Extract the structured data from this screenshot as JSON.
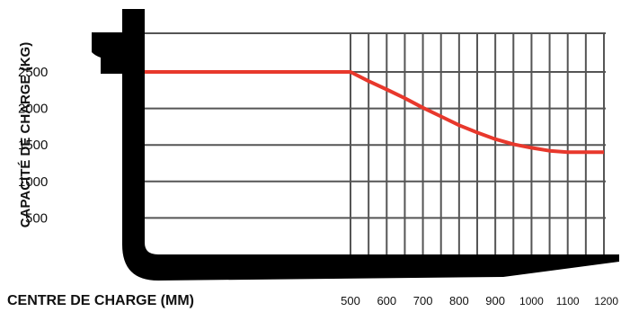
{
  "chart_data": {
    "type": "line",
    "title": "",
    "xlabel": "CENTRE DE CHARGE (MM)",
    "ylabel": "CAPACITÉ DE CHARGE (KG)",
    "x_ticks": [
      "500",
      "600",
      "700",
      "800",
      "900",
      "1000",
      "1100",
      "1200"
    ],
    "y_ticks": [
      "500",
      "1000",
      "1500",
      "2000",
      "2500"
    ],
    "xlim": [
      500,
      1200
    ],
    "ylim": [
      0,
      2500
    ],
    "grid": true,
    "line_color": "#e8382c",
    "grid_color": "#555555",
    "series": [
      {
        "x": [
          0,
          500,
          550,
          600,
          650,
          700,
          750,
          800,
          850,
          900,
          950,
          1000,
          1050,
          1100,
          1150,
          1200
        ],
        "y": [
          2500,
          2500,
          2375,
          2260,
          2140,
          2010,
          1890,
          1770,
          1670,
          1580,
          1510,
          1460,
          1420,
          1400,
          1400,
          1400
        ]
      }
    ]
  }
}
